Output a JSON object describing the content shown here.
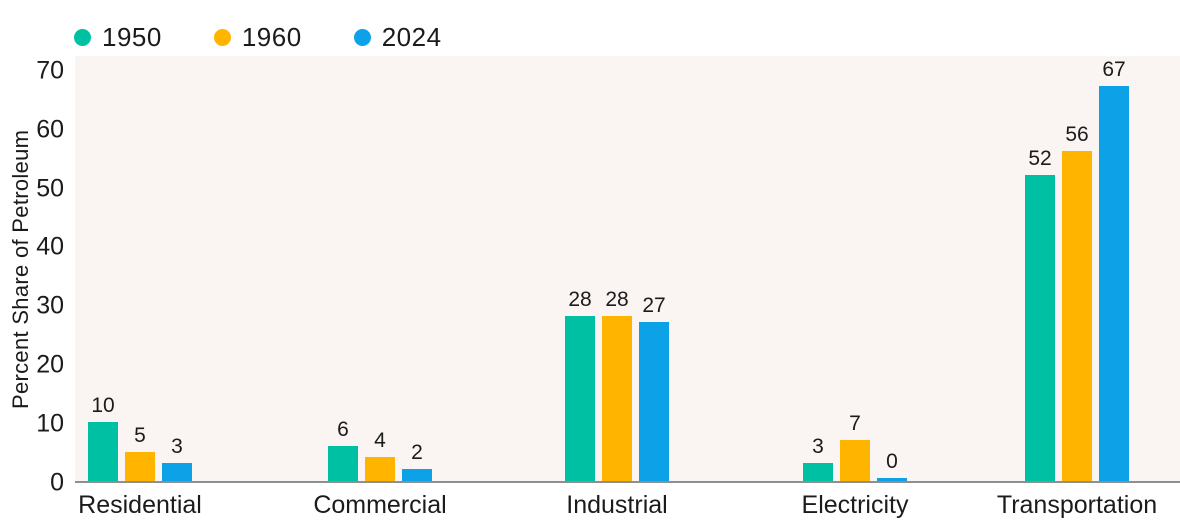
{
  "chart_data": {
    "type": "bar",
    "title": "",
    "ylabel": "Percent Share of Petroleum",
    "xlabel": "",
    "categories": [
      "Residential",
      "Commercial",
      "Industrial",
      "Electricity",
      "Transportation"
    ],
    "series": [
      {
        "name": "1950",
        "color": "#00c0a3",
        "values": [
          10,
          6,
          28,
          3,
          52
        ]
      },
      {
        "name": "1960",
        "color": "#ffb400",
        "values": [
          5,
          4,
          28,
          7,
          56
        ]
      },
      {
        "name": "2024",
        "color": "#0da2e7",
        "values": [
          3,
          2,
          27,
          0,
          67
        ]
      }
    ],
    "ylim": [
      0,
      70
    ],
    "yticks": [
      0,
      10,
      20,
      30,
      40,
      50,
      60,
      70
    ],
    "grid": false,
    "legend_position": "top-left",
    "value_labels_shown": true,
    "colors": {
      "plot_background": "#faf4f2",
      "page_background": "#ffffff",
      "axis_line": "#8f8f8f",
      "text": "#1b1b1b"
    }
  }
}
